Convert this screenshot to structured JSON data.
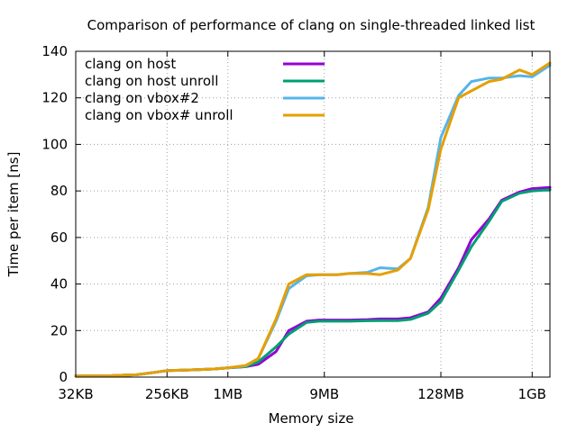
{
  "chart_data": {
    "type": "line",
    "title": "Comparison of performance of clang on single-threaded linked list",
    "xlabel": "Memory size",
    "ylabel": "Time per item [ns]",
    "x_scale": "log2",
    "x_ticks": [
      {
        "label": "32KB",
        "bytes": 32768
      },
      {
        "label": "256KB",
        "bytes": 262144
      },
      {
        "label": "1MB",
        "bytes": 1048576
      },
      {
        "label": "9MB",
        "bytes": 9437184
      },
      {
        "label": "128MB",
        "bytes": 134217728
      },
      {
        "label": "1GB",
        "bytes": 1073741824
      }
    ],
    "xlim_bytes": [
      32768,
      1610612736
    ],
    "ylim": [
      0,
      140
    ],
    "y_ticks": [
      0,
      20,
      40,
      60,
      80,
      100,
      120,
      140
    ],
    "grid": true,
    "legend_position": "top-left",
    "series": [
      {
        "name": "clang on host",
        "color": "#9400d3",
        "points": [
          [
            32768,
            0.5
          ],
          [
            65536,
            0.5
          ],
          [
            98304,
            0.8
          ],
          [
            131072,
            1.0
          ],
          [
            196608,
            2.0
          ],
          [
            262144,
            2.8
          ],
          [
            393216,
            3.0
          ],
          [
            524288,
            3.2
          ],
          [
            786432,
            3.5
          ],
          [
            1048576,
            4.0
          ],
          [
            1572864,
            4.5
          ],
          [
            2097152,
            5.5
          ],
          [
            3145728,
            11
          ],
          [
            4194304,
            20
          ],
          [
            6291456,
            24
          ],
          [
            8388608,
            24.5
          ],
          [
            12582912,
            24.5
          ],
          [
            16777216,
            24.5
          ],
          [
            25165824,
            24.7
          ],
          [
            33554432,
            25
          ],
          [
            50331648,
            25
          ],
          [
            67108864,
            25.5
          ],
          [
            100663296,
            28
          ],
          [
            134217728,
            34
          ],
          [
            201326592,
            47
          ],
          [
            268435456,
            59
          ],
          [
            402653184,
            68
          ],
          [
            536870912,
            76
          ],
          [
            805306368,
            79.5
          ],
          [
            1073741824,
            81
          ],
          [
            1610612736,
            81.5
          ]
        ]
      },
      {
        "name": "clang on host unroll",
        "color": "#009e73",
        "points": [
          [
            32768,
            0.5
          ],
          [
            65536,
            0.5
          ],
          [
            98304,
            0.8
          ],
          [
            131072,
            1.0
          ],
          [
            196608,
            2.0
          ],
          [
            262144,
            2.8
          ],
          [
            393216,
            3.0
          ],
          [
            524288,
            3.2
          ],
          [
            786432,
            3.5
          ],
          [
            1048576,
            4.0
          ],
          [
            1572864,
            4.5
          ],
          [
            2097152,
            6.5
          ],
          [
            3145728,
            13
          ],
          [
            4194304,
            18.5
          ],
          [
            6291456,
            23.5
          ],
          [
            8388608,
            24
          ],
          [
            12582912,
            24
          ],
          [
            16777216,
            24
          ],
          [
            25165824,
            24.2
          ],
          [
            33554432,
            24.3
          ],
          [
            50331648,
            24.3
          ],
          [
            67108864,
            24.8
          ],
          [
            100663296,
            27.5
          ],
          [
            134217728,
            32.5
          ],
          [
            201326592,
            46
          ],
          [
            268435456,
            56
          ],
          [
            402653184,
            67
          ],
          [
            536870912,
            75.5
          ],
          [
            805306368,
            79
          ],
          [
            1073741824,
            80
          ],
          [
            1610612736,
            80.5
          ]
        ]
      },
      {
        "name": "clang on vbox#2",
        "color": "#56b4e9",
        "points": [
          [
            32768,
            0.5
          ],
          [
            65536,
            0.5
          ],
          [
            98304,
            0.8
          ],
          [
            131072,
            1.0
          ],
          [
            196608,
            2.0
          ],
          [
            262144,
            2.8
          ],
          [
            393216,
            3.0
          ],
          [
            524288,
            3.2
          ],
          [
            786432,
            3.5
          ],
          [
            1048576,
            4.0
          ],
          [
            1572864,
            4.8
          ],
          [
            2097152,
            8
          ],
          [
            3145728,
            24
          ],
          [
            4194304,
            38
          ],
          [
            6291456,
            43.5
          ],
          [
            8388608,
            44
          ],
          [
            12582912,
            44
          ],
          [
            16777216,
            44.5
          ],
          [
            25165824,
            45
          ],
          [
            33554432,
            47
          ],
          [
            50331648,
            46.5
          ],
          [
            67108864,
            51
          ],
          [
            100663296,
            73
          ],
          [
            134217728,
            103
          ],
          [
            201326592,
            121
          ],
          [
            268435456,
            127
          ],
          [
            402653184,
            128.5
          ],
          [
            536870912,
            128.5
          ],
          [
            805306368,
            129.5
          ],
          [
            1073741824,
            129
          ],
          [
            1610612736,
            134
          ]
        ]
      },
      {
        "name": "clang on vbox# unroll",
        "color": "#e69f00",
        "points": [
          [
            32768,
            0.5
          ],
          [
            65536,
            0.5
          ],
          [
            98304,
            0.8
          ],
          [
            131072,
            1.0
          ],
          [
            196608,
            2.0
          ],
          [
            262144,
            2.8
          ],
          [
            393216,
            3.0
          ],
          [
            524288,
            3.2
          ],
          [
            786432,
            3.5
          ],
          [
            1048576,
            4.0
          ],
          [
            1572864,
            5.0
          ],
          [
            2097152,
            8
          ],
          [
            3145728,
            25
          ],
          [
            4194304,
            40
          ],
          [
            6291456,
            44
          ],
          [
            8388608,
            44
          ],
          [
            12582912,
            44
          ],
          [
            16777216,
            44.5
          ],
          [
            25165824,
            44.5
          ],
          [
            33554432,
            44
          ],
          [
            50331648,
            46
          ],
          [
            67108864,
            51
          ],
          [
            100663296,
            72
          ],
          [
            134217728,
            98
          ],
          [
            201326592,
            120
          ],
          [
            268435456,
            123
          ],
          [
            402653184,
            127
          ],
          [
            536870912,
            128
          ],
          [
            805306368,
            132
          ],
          [
            1073741824,
            130
          ],
          [
            1610612736,
            135
          ]
        ]
      }
    ]
  }
}
